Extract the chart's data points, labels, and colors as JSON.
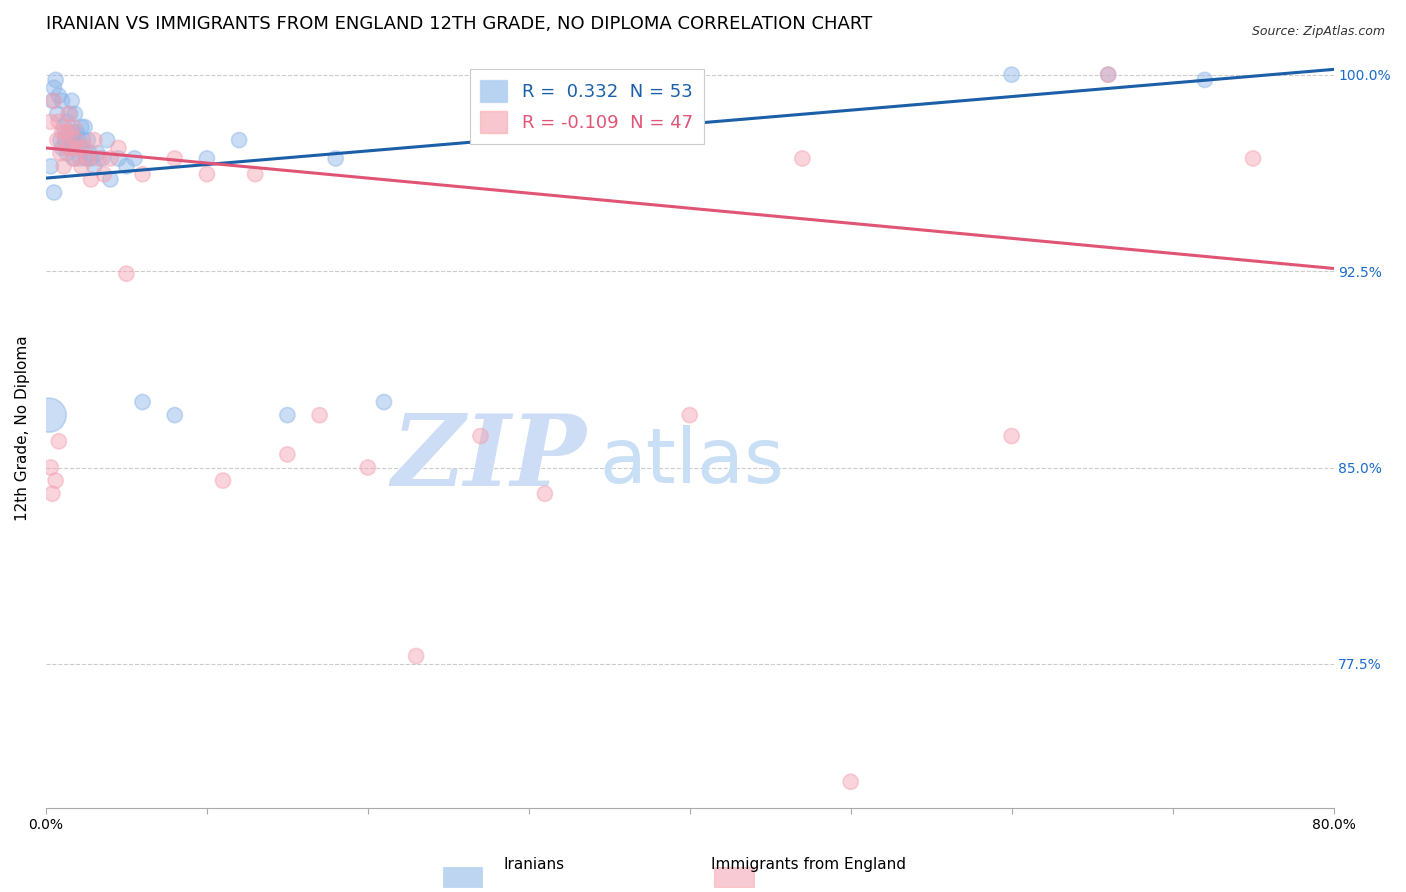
{
  "title": "IRANIAN VS IMMIGRANTS FROM ENGLAND 12TH GRADE, NO DIPLOMA CORRELATION CHART",
  "source": "Source: ZipAtlas.com",
  "ylabel": "12th Grade, No Diploma",
  "xlim": [
    0.0,
    0.8
  ],
  "ylim": [
    0.72,
    1.01
  ],
  "xticks": [
    0.0,
    0.1,
    0.2,
    0.3,
    0.4,
    0.5,
    0.6,
    0.7,
    0.8
  ],
  "xticklabels": [
    "0.0%",
    "",
    "",
    "",
    "",
    "",
    "",
    "",
    "80.0%"
  ],
  "yticks": [
    0.775,
    0.85,
    0.925,
    1.0
  ],
  "yticklabels": [
    "77.5%",
    "85.0%",
    "92.5%",
    "100.0%"
  ],
  "blue_R": 0.332,
  "blue_N": 53,
  "pink_R": -0.109,
  "pink_N": 47,
  "blue_color": "#8ab4e8",
  "pink_color": "#f4a0b0",
  "blue_line_color": "#1a5fa8",
  "pink_line_color": "#e05575",
  "background_color": "#ffffff",
  "grid_color": "#cccccc",
  "watermark_zip": "ZIP",
  "watermark_atlas": "atlas",
  "watermark_color_zip": "#ccddf5",
  "watermark_color_atlas": "#c8dff5",
  "title_fontsize": 13,
  "label_fontsize": 11,
  "tick_fontsize": 10,
  "legend_fontsize": 13,
  "blue_x": [
    0.002,
    0.004,
    0.005,
    0.006,
    0.007,
    0.008,
    0.009,
    0.01,
    0.01,
    0.011,
    0.012,
    0.013,
    0.013,
    0.014,
    0.015,
    0.015,
    0.016,
    0.016,
    0.017,
    0.017,
    0.018,
    0.018,
    0.019,
    0.02,
    0.021,
    0.022,
    0.022,
    0.023,
    0.024,
    0.025,
    0.026,
    0.027,
    0.028,
    0.03,
    0.032,
    0.035,
    0.038,
    0.04,
    0.045,
    0.05,
    0.055,
    0.06,
    0.08,
    0.1,
    0.12,
    0.15,
    0.18,
    0.21,
    0.6,
    0.66,
    0.72,
    0.005,
    0.003
  ],
  "blue_y": [
    0.87,
    0.99,
    0.995,
    0.998,
    0.985,
    0.992,
    0.975,
    0.99,
    0.972,
    0.98,
    0.975,
    0.97,
    0.982,
    0.978,
    0.972,
    0.985,
    0.975,
    0.99,
    0.978,
    0.968,
    0.985,
    0.972,
    0.978,
    0.975,
    0.968,
    0.98,
    0.972,
    0.975,
    0.98,
    0.968,
    0.975,
    0.97,
    0.968,
    0.965,
    0.97,
    0.968,
    0.975,
    0.96,
    0.968,
    0.965,
    0.968,
    0.875,
    0.87,
    0.968,
    0.975,
    0.87,
    0.968,
    0.875,
    1.0,
    1.0,
    0.998,
    0.955,
    0.965
  ],
  "blue_sizes": [
    600,
    120,
    120,
    120,
    120,
    120,
    120,
    120,
    120,
    120,
    120,
    120,
    120,
    120,
    120,
    120,
    120,
    120,
    120,
    120,
    120,
    120,
    120,
    120,
    120,
    120,
    120,
    120,
    120,
    120,
    120,
    120,
    120,
    120,
    120,
    120,
    120,
    120,
    120,
    120,
    120,
    120,
    120,
    120,
    120,
    120,
    120,
    120,
    120,
    120,
    120,
    120,
    120
  ],
  "pink_x": [
    0.003,
    0.005,
    0.007,
    0.008,
    0.009,
    0.01,
    0.011,
    0.012,
    0.013,
    0.014,
    0.015,
    0.016,
    0.017,
    0.018,
    0.019,
    0.02,
    0.022,
    0.024,
    0.026,
    0.028,
    0.03,
    0.033,
    0.036,
    0.04,
    0.045,
    0.05,
    0.06,
    0.08,
    0.1,
    0.11,
    0.13,
    0.15,
    0.17,
    0.2,
    0.23,
    0.27,
    0.31,
    0.4,
    0.47,
    0.5,
    0.6,
    0.66,
    0.75,
    0.003,
    0.004,
    0.006,
    0.008
  ],
  "pink_y": [
    0.982,
    0.99,
    0.975,
    0.982,
    0.97,
    0.978,
    0.965,
    0.978,
    0.972,
    0.985,
    0.978,
    0.972,
    0.98,
    0.968,
    0.975,
    0.972,
    0.965,
    0.972,
    0.968,
    0.96,
    0.975,
    0.968,
    0.962,
    0.968,
    0.972,
    0.924,
    0.962,
    0.968,
    0.962,
    0.845,
    0.962,
    0.855,
    0.87,
    0.85,
    0.778,
    0.862,
    0.84,
    0.87,
    0.968,
    0.73,
    0.862,
    1.0,
    0.968,
    0.85,
    0.84,
    0.845,
    0.86
  ],
  "pink_sizes": [
    120,
    120,
    120,
    120,
    120,
    120,
    120,
    120,
    120,
    120,
    120,
    120,
    120,
    120,
    120,
    120,
    120,
    120,
    120,
    120,
    120,
    120,
    120,
    120,
    120,
    120,
    120,
    120,
    120,
    120,
    120,
    120,
    120,
    120,
    120,
    120,
    120,
    120,
    120,
    120,
    120,
    120,
    120,
    120,
    120,
    120,
    120
  ],
  "blue_trend_x0": 0.0,
  "blue_trend_y0": 0.9605,
  "blue_trend_x1": 0.8,
  "blue_trend_y1": 1.002,
  "pink_trend_x0": 0.0,
  "pink_trend_y0": 0.972,
  "pink_trend_x1": 0.8,
  "pink_trend_y1": 0.926
}
